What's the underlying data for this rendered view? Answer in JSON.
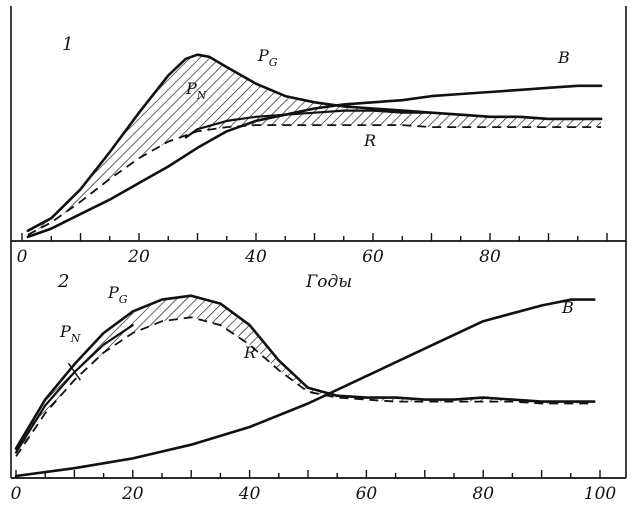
{
  "chart_data": [
    {
      "type": "line",
      "panel_label": "1",
      "xlabel": "Годы",
      "x_ticks": [
        0,
        20,
        40,
        60,
        80
      ],
      "xlim": [
        0,
        100
      ],
      "ylim": [
        0,
        1
      ],
      "hatched_between": [
        "P_G",
        "R"
      ],
      "series": [
        {
          "name": "B",
          "style": "solid",
          "x": [
            1,
            5,
            10,
            15,
            20,
            25,
            30,
            35,
            40,
            45,
            50,
            55,
            60,
            65,
            70,
            75,
            80,
            85,
            90,
            95,
            99
          ],
          "y": [
            0.02,
            0.06,
            0.13,
            0.2,
            0.28,
            0.36,
            0.45,
            0.53,
            0.58,
            0.61,
            0.64,
            0.66,
            0.67,
            0.68,
            0.7,
            0.71,
            0.72,
            0.73,
            0.74,
            0.75,
            0.75
          ]
        },
        {
          "name": "P_G",
          "label": "P",
          "subscript": "G",
          "style": "solid",
          "x": [
            1,
            5,
            10,
            15,
            20,
            25,
            28,
            30,
            32,
            35,
            40,
            45,
            50,
            55,
            60,
            65,
            70,
            75,
            80,
            85,
            90,
            95,
            99
          ],
          "y": [
            0.05,
            0.11,
            0.25,
            0.43,
            0.62,
            0.8,
            0.88,
            0.9,
            0.89,
            0.84,
            0.76,
            0.7,
            0.67,
            0.65,
            0.64,
            0.63,
            0.62,
            0.61,
            0.6,
            0.6,
            0.59,
            0.59,
            0.59
          ]
        },
        {
          "name": "P_N",
          "label": "P",
          "subscript": "N",
          "style": "solid",
          "x": [
            28,
            30,
            35,
            40,
            45,
            50,
            55,
            60,
            65,
            70,
            75,
            80,
            85,
            90,
            95,
            99
          ],
          "y": [
            0.5,
            0.54,
            0.58,
            0.6,
            0.61,
            0.62,
            0.63,
            0.63,
            0.62,
            0.62,
            0.61,
            0.6,
            0.6,
            0.59,
            0.59,
            0.59
          ]
        },
        {
          "name": "R",
          "style": "dashed",
          "x": [
            1,
            5,
            10,
            15,
            20,
            25,
            30,
            35,
            40,
            45,
            50,
            55,
            60,
            65,
            70,
            75,
            80,
            85,
            90,
            95,
            99
          ],
          "y": [
            0.03,
            0.09,
            0.19,
            0.3,
            0.4,
            0.48,
            0.53,
            0.55,
            0.56,
            0.56,
            0.56,
            0.56,
            0.56,
            0.56,
            0.55,
            0.55,
            0.55,
            0.55,
            0.55,
            0.55,
            0.55
          ]
        }
      ],
      "curve_labels": [
        {
          "series": "P_G",
          "text": "P",
          "subscript": "G"
        },
        {
          "series": "P_N",
          "text": "P",
          "subscript": "N"
        },
        {
          "series": "B",
          "text": "B"
        },
        {
          "series": "R",
          "text": "R"
        }
      ]
    },
    {
      "type": "line",
      "panel_label": "2",
      "x_ticks": [
        0,
        20,
        40,
        60,
        80,
        100
      ],
      "xlim": [
        0,
        100
      ],
      "ylim": [
        0,
        1
      ],
      "hatched_between": [
        "P_G",
        "R"
      ],
      "series": [
        {
          "name": "B",
          "style": "solid",
          "x": [
            0,
            10,
            20,
            30,
            40,
            50,
            60,
            70,
            80,
            90,
            95,
            99
          ],
          "y": [
            0.01,
            0.05,
            0.1,
            0.17,
            0.26,
            0.38,
            0.52,
            0.66,
            0.8,
            0.88,
            0.91,
            0.91
          ]
        },
        {
          "name": "P_G",
          "label": "P",
          "subscript": "G",
          "style": "solid",
          "x": [
            0,
            5,
            10,
            15,
            20,
            25,
            30,
            35,
            40,
            45,
            50,
            55,
            60,
            65,
            70,
            75,
            80,
            85,
            90,
            95,
            99
          ],
          "y": [
            0.15,
            0.4,
            0.58,
            0.74,
            0.85,
            0.91,
            0.93,
            0.89,
            0.78,
            0.6,
            0.46,
            0.42,
            0.41,
            0.41,
            0.4,
            0.4,
            0.41,
            0.4,
            0.39,
            0.39,
            0.39
          ]
        },
        {
          "name": "P_N",
          "label": "P",
          "subscript": "N",
          "style": "solid",
          "x": [
            0,
            5,
            10,
            15,
            20
          ],
          "y": [
            0.13,
            0.37,
            0.54,
            0.68,
            0.78
          ]
        },
        {
          "name": "R",
          "style": "dashed",
          "x": [
            0,
            5,
            10,
            15,
            20,
            25,
            30,
            35,
            40,
            45,
            50,
            55,
            60,
            65,
            70,
            75,
            80,
            85,
            90,
            95,
            99
          ],
          "y": [
            0.11,
            0.33,
            0.5,
            0.64,
            0.74,
            0.8,
            0.82,
            0.78,
            0.68,
            0.55,
            0.44,
            0.41,
            0.4,
            0.39,
            0.39,
            0.39,
            0.39,
            0.39,
            0.38,
            0.38,
            0.38
          ]
        }
      ],
      "curve_labels": [
        {
          "series": "P_G",
          "text": "P",
          "subscript": "G"
        },
        {
          "series": "P_N",
          "text": "P",
          "subscript": "N"
        },
        {
          "series": "B",
          "text": "B"
        },
        {
          "series": "R",
          "text": "R"
        }
      ]
    }
  ]
}
